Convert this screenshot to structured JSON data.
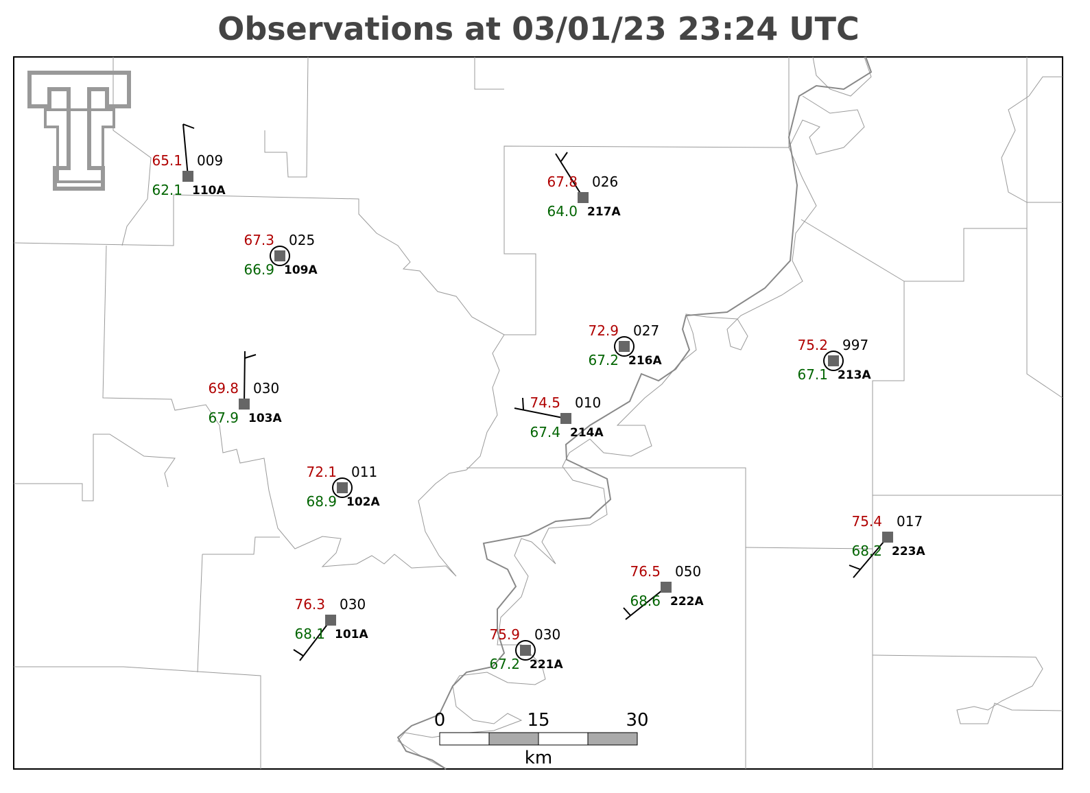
{
  "title": "Observations at 03/01/23 23:24 UTC",
  "stations": [
    {
      "temperature": "65.1",
      "dewpoint": "62.1",
      "pressure": "009",
      "id": "110A"
    },
    {
      "temperature": "67.3",
      "dewpoint": "66.9",
      "pressure": "025",
      "id": "109A"
    },
    {
      "temperature": "69.8",
      "dewpoint": "67.9",
      "pressure": "030",
      "id": "103A"
    },
    {
      "temperature": "72.1",
      "dewpoint": "68.9",
      "pressure": "011",
      "id": "102A"
    },
    {
      "temperature": "76.3",
      "dewpoint": "68.1",
      "pressure": "030",
      "id": "101A"
    },
    {
      "temperature": "67.8",
      "dewpoint": "64.0",
      "pressure": "026",
      "id": "217A"
    },
    {
      "temperature": "72.9",
      "dewpoint": "67.2",
      "pressure": "027",
      "id": "216A"
    },
    {
      "temperature": "74.5",
      "dewpoint": "67.4",
      "pressure": "010",
      "id": "214A"
    },
    {
      "temperature": "75.9",
      "dewpoint": "67.2",
      "pressure": "030",
      "id": "221A"
    },
    {
      "temperature": "76.5",
      "dewpoint": "68.6",
      "pressure": "050",
      "id": "222A"
    },
    {
      "temperature": "75.2",
      "dewpoint": "67.1",
      "pressure": "997",
      "id": "213A"
    },
    {
      "temperature": "75.4",
      "dewpoint": "68.2",
      "pressure": "017",
      "id": "223A"
    }
  ],
  "scale_bar": {
    "labels": [
      "0",
      "15",
      "30"
    ],
    "unit": "km"
  }
}
